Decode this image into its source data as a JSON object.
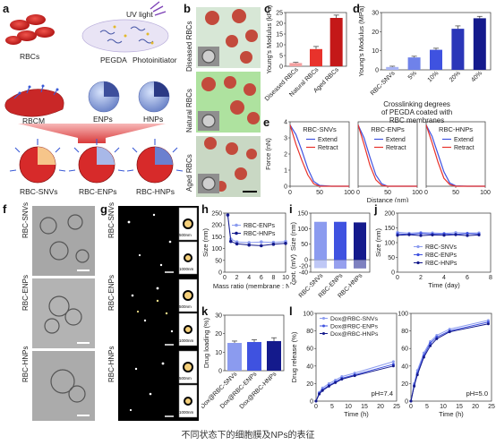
{
  "panels": {
    "a": {
      "letter": "a",
      "uv": "UV light",
      "rbcs": "RBCs",
      "pegda": "PEGDA",
      "photoinitiator": "Photoinitiator",
      "rbcm": "RBCM",
      "enps": "ENPs",
      "hnps": "HNPs",
      "snvs": "RBC-SNVs",
      "renps": "RBC-ENPs",
      "rhnps": "RBC-HNPs"
    },
    "b": {
      "letter": "b",
      "rows": [
        "Diseased RBCs",
        "Natural RBCs",
        "Aged RBCs"
      ]
    },
    "c": {
      "letter": "c"
    },
    "d": {
      "letter": "d",
      "caption_lines": [
        "Crosslinking degrees",
        "of PEGDA coated with",
        "RBC membranes"
      ]
    },
    "e": {
      "letter": "e"
    },
    "f": {
      "letter": "f",
      "rows": [
        "RBC-SNVs",
        "RBC-ENPs",
        "RBC-HNPs"
      ]
    },
    "g": {
      "letter": "g",
      "rows": [
        "RBC-SNVs",
        "RBC-ENPs",
        "RBC-HNPs"
      ],
      "scale_labels": [
        "500nm",
        "1000nm",
        "500nm",
        "1000nm",
        "500nm",
        "1000nm"
      ]
    },
    "h": {
      "letter": "h"
    },
    "i": {
      "letter": "i"
    },
    "j": {
      "letter": "j"
    },
    "k": {
      "letter": "k"
    },
    "l": {
      "letter": "l",
      "ph1": "pH=7.4",
      "ph2": "pH=5.0"
    }
  },
  "caption": "不同状态下的细胞膜及NPs的表征",
  "colors": {
    "light": "#8b9bef",
    "mid": "#3f52e0",
    "dark": "#141a8c",
    "red": "#e8322b",
    "accent": "#6a7de6"
  },
  "chart_data": [
    {
      "id": "c",
      "type": "bar",
      "ylabel": "Young's Modulus (kPa)",
      "ylim": [
        0,
        25
      ],
      "yticks": [
        0,
        5,
        10,
        15,
        20,
        25
      ],
      "categories": [
        "Diseased RBCs",
        "Natural RBCs",
        "Aged RBCs"
      ],
      "values": [
        1.5,
        8,
        22.5
      ],
      "errors": [
        0.3,
        1.2,
        1.3
      ],
      "colors": [
        "#f3a0a0",
        "#e8322b",
        "#c41818"
      ]
    },
    {
      "id": "d",
      "type": "bar",
      "ylabel": "Young's Modulus (MPa)",
      "ylim": [
        0,
        30
      ],
      "yticks": [
        0,
        10,
        20,
        30
      ],
      "categories": [
        "RBC-SNVs",
        "5%",
        "10%",
        "20%",
        "40%"
      ],
      "values": [
        1.5,
        6.5,
        10.5,
        21.5,
        27
      ],
      "errors": [
        0.4,
        0.6,
        0.8,
        1.5,
        1.0
      ],
      "colors": [
        "#a8b4f4",
        "#6f82ea",
        "#3f52e0",
        "#2a36b8",
        "#141a8c"
      ]
    },
    {
      "id": "e",
      "type": "line",
      "ylabel": "Force (nN)",
      "xlabel": "Distance (nm)",
      "ylim": [
        0,
        4
      ],
      "yticks": [
        0,
        1,
        2,
        3,
        4
      ],
      "xlim": [
        0,
        100
      ],
      "xticks": [
        0,
        50,
        100
      ],
      "subplots": [
        {
          "title": "RBC-SNVs",
          "legend": [
            "Extend",
            "Retract"
          ],
          "series": [
            {
              "name": "Extend",
              "x": [
                0,
                10,
                20,
                30,
                40,
                50,
                70,
                100
              ],
              "y": [
                3.8,
                3.2,
                2.2,
                1.1,
                0.3,
                0.05,
                0,
                0
              ]
            },
            {
              "name": "Retract",
              "x": [
                0,
                10,
                20,
                30,
                40,
                50,
                70,
                100
              ],
              "y": [
                3.8,
                2.6,
                1.6,
                0.7,
                0.15,
                0,
                0,
                0
              ]
            }
          ]
        },
        {
          "title": "RBC-ENPs",
          "legend": [
            "Extend",
            "Retract"
          ],
          "series": [
            {
              "name": "Extend",
              "x": [
                0,
                10,
                20,
                30,
                40,
                50,
                70,
                100
              ],
              "y": [
                3.8,
                3.0,
                1.8,
                0.7,
                0.15,
                0,
                0,
                0
              ]
            },
            {
              "name": "Retract",
              "x": [
                0,
                10,
                20,
                30,
                40,
                50,
                70,
                100
              ],
              "y": [
                3.8,
                2.6,
                1.3,
                0.4,
                0.05,
                0,
                0,
                0
              ]
            }
          ]
        },
        {
          "title": "RBC-HNPs",
          "legend": [
            "Extend",
            "Retract"
          ],
          "series": [
            {
              "name": "Extend",
              "x": [
                0,
                10,
                20,
                30,
                40,
                50,
                70,
                100
              ],
              "y": [
                3.8,
                3.1,
                2.0,
                0.9,
                0.2,
                0.02,
                0,
                0
              ]
            },
            {
              "name": "Retract",
              "x": [
                0,
                10,
                20,
                30,
                40,
                50,
                70,
                100
              ],
              "y": [
                3.8,
                2.7,
                1.5,
                0.5,
                0.1,
                0,
                0,
                0
              ]
            }
          ]
        }
      ]
    },
    {
      "id": "h",
      "type": "line",
      "ylabel": "Size (nm)",
      "xlabel": "Mass ratio (membrane : NP)",
      "ylim": [
        0,
        250
      ],
      "yticks": [
        0,
        50,
        100,
        150,
        200,
        250
      ],
      "xlim": [
        0,
        10
      ],
      "xticks": [
        0,
        2,
        4,
        6,
        8,
        10
      ],
      "series": [
        {
          "name": "RBC-ENPs",
          "x": [
            0.5,
            1,
            2,
            4,
            6,
            8,
            10
          ],
          "y": [
            242,
            140,
            128,
            125,
            128,
            126,
            130
          ]
        },
        {
          "name": "RBC-HNPs",
          "x": [
            0.5,
            1,
            2,
            4,
            6,
            8,
            10
          ],
          "y": [
            242,
            130,
            120,
            115,
            112,
            118,
            122
          ]
        }
      ]
    },
    {
      "id": "i",
      "type": "bar",
      "ylabel": "Size (nm)",
      "ylabel2": "ζpot. (mV)",
      "ylim": [
        -40,
        150
      ],
      "yticks": [
        -40,
        -20,
        0,
        50,
        100,
        150
      ],
      "categories": [
        "RBC-SNVs",
        "RBC-ENPs",
        "RBC-HNPs"
      ],
      "values": [
        122,
        122,
        120
      ],
      "values2": [
        -27,
        -29,
        -28
      ],
      "colors": [
        "#8b9bef",
        "#3f52e0",
        "#141a8c"
      ]
    },
    {
      "id": "j",
      "type": "line",
      "ylabel": "Size (nm)",
      "xlabel": "Time (day)",
      "ylim": [
        0,
        200
      ],
      "yticks": [
        0,
        50,
        100,
        150,
        200
      ],
      "xlim": [
        0,
        8
      ],
      "xticks": [
        0,
        2,
        4,
        6,
        8
      ],
      "series": [
        {
          "name": "RBC-SNVs",
          "x": [
            0,
            1,
            2,
            3,
            4,
            5,
            6,
            7
          ],
          "y": [
            135,
            132,
            134,
            133,
            131,
            134,
            132,
            133
          ]
        },
        {
          "name": "RBC-ENPs",
          "x": [
            0,
            1,
            2,
            3,
            4,
            5,
            6,
            7
          ],
          "y": [
            130,
            128,
            131,
            129,
            130,
            128,
            131,
            129
          ]
        },
        {
          "name": "RBC-HNPs",
          "x": [
            0,
            1,
            2,
            3,
            4,
            5,
            6,
            7
          ],
          "y": [
            125,
            127,
            124,
            126,
            125,
            127,
            124,
            126
          ]
        }
      ]
    },
    {
      "id": "k",
      "type": "bar",
      "ylabel": "Drug loading (%)",
      "ylim": [
        0,
        30
      ],
      "yticks": [
        0,
        10,
        20,
        30
      ],
      "categories": [
        "Dox@RBC-SNVs",
        "Dox@RBC-ENPs",
        "Dox@RBC-HNPs"
      ],
      "values": [
        15,
        15.5,
        16
      ],
      "errors": [
        1.0,
        1.2,
        1.8
      ],
      "colors": [
        "#8b9bef",
        "#3f52e0",
        "#141a8c"
      ]
    },
    {
      "id": "l",
      "type": "line",
      "ylabel": "Drug release (%)",
      "xlabel": "Time (h)",
      "ylim": [
        0,
        100
      ],
      "yticks": [
        0,
        20,
        40,
        60,
        80,
        100
      ],
      "xlim": [
        0,
        25
      ],
      "xticks": [
        0,
        5,
        10,
        15,
        20,
        25
      ],
      "subplots": [
        {
          "ph": "pH=7.4",
          "legend": [
            "Dox@RBC-SNVs",
            "Dox@RBC-ENPs",
            "Dox@RBC-HNPs"
          ],
          "series": [
            {
              "name": "Dox@RBC-SNVs",
              "x": [
                0,
                1,
                2,
                4,
                6,
                8,
                12,
                24
              ],
              "y": [
                0,
                10,
                15,
                20,
                24,
                28,
                32,
                45
              ]
            },
            {
              "name": "Dox@RBC-ENPs",
              "x": [
                0,
                1,
                2,
                4,
                6,
                8,
                12,
                24
              ],
              "y": [
                0,
                9,
                13,
                18,
                22,
                26,
                30,
                42
              ]
            },
            {
              "name": "Dox@RBC-HNPs",
              "x": [
                0,
                1,
                2,
                4,
                6,
                8,
                12,
                24
              ],
              "y": [
                0,
                8,
                12,
                17,
                21,
                25,
                29,
                40
              ]
            }
          ]
        },
        {
          "ph": "pH=5.0",
          "series": [
            {
              "name": "Dox@RBC-SNVs",
              "x": [
                0,
                1,
                2,
                4,
                6,
                8,
                12,
                24
              ],
              "y": [
                0,
                20,
                35,
                55,
                68,
                75,
                82,
                92
              ]
            },
            {
              "name": "Dox@RBC-ENPs",
              "x": [
                0,
                1,
                2,
                4,
                6,
                8,
                12,
                24
              ],
              "y": [
                0,
                18,
                32,
                52,
                66,
                73,
                80,
                90
              ]
            },
            {
              "name": "Dox@RBC-HNPs",
              "x": [
                0,
                1,
                2,
                4,
                6,
                8,
                12,
                24
              ],
              "y": [
                0,
                17,
                30,
                50,
                63,
                71,
                79,
                88
              ]
            }
          ]
        }
      ]
    }
  ]
}
